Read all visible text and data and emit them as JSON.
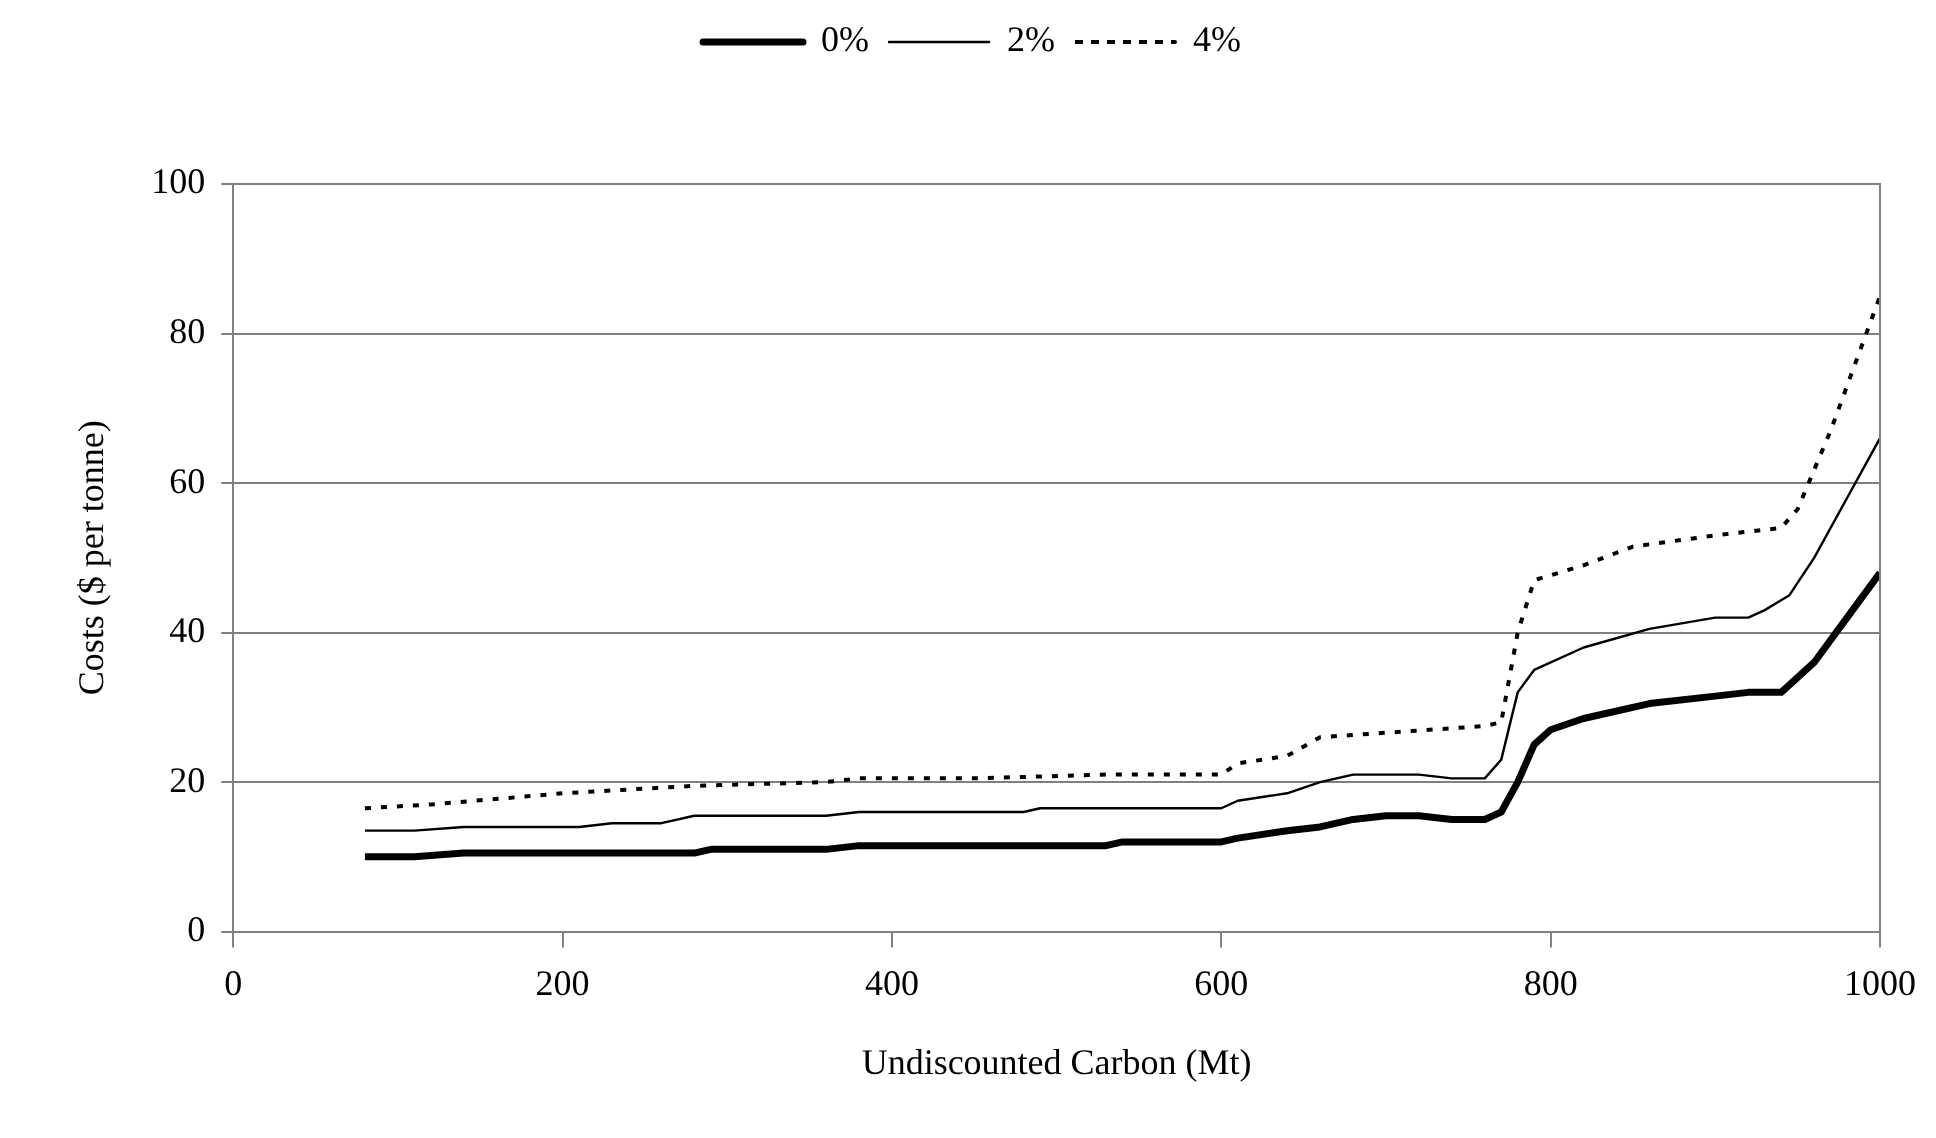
{
  "chart_data": {
    "type": "line",
    "xlabel": "Undiscounted Carbon (Mt)",
    "ylabel": "Costs ($ per tonne)",
    "xlim": [
      0,
      1000
    ],
    "xticks": [
      0,
      200,
      400,
      600,
      800,
      1000
    ],
    "ylim": [
      0,
      100
    ],
    "yticks": [
      0,
      20,
      40,
      60,
      80,
      100
    ],
    "grid": "y",
    "legend": "top",
    "marker": "none",
    "series": [
      {
        "name": "0%",
        "color": "#000000",
        "line_style": "solid",
        "x": [
          80,
          110,
          140,
          280,
          290,
          360,
          380,
          530,
          540,
          600,
          610,
          640,
          660,
          680,
          700,
          720,
          740,
          760,
          770,
          780,
          790,
          800,
          820,
          860,
          900,
          920,
          940,
          960,
          980,
          1000
        ],
        "values": [
          10,
          10,
          10.5,
          10.5,
          11,
          11,
          11.5,
          11.5,
          12,
          12,
          12.5,
          13.5,
          14,
          15,
          15.5,
          15.5,
          15,
          15,
          16,
          20,
          25,
          27,
          28.5,
          30.5,
          31.5,
          32,
          32,
          36,
          42,
          48
        ]
      },
      {
        "name": "2%",
        "color": "#000000",
        "line_style": "solid",
        "x": [
          80,
          110,
          140,
          210,
          230,
          260,
          280,
          360,
          380,
          480,
          490,
          600,
          610,
          640,
          660,
          680,
          720,
          740,
          760,
          770,
          780,
          790,
          820,
          860,
          900,
          920,
          930,
          945,
          960,
          980,
          1000
        ],
        "values": [
          13.5,
          13.5,
          14,
          14,
          14.5,
          14.5,
          15.5,
          15.5,
          16,
          16,
          16.5,
          16.5,
          17.5,
          18.5,
          20,
          21,
          21,
          20.5,
          20.5,
          23,
          32,
          35,
          38,
          40.5,
          42,
          42,
          43,
          45,
          50,
          58,
          66
        ]
      },
      {
        "name": "4%",
        "color": "#000000",
        "line_style": "dotted",
        "x": [
          80,
          120,
          200,
          280,
          360,
          380,
          450,
          530,
          600,
          610,
          640,
          660,
          760,
          770,
          780,
          790,
          820,
          850,
          900,
          940,
          950,
          970,
          990,
          1000
        ],
        "values": [
          16.5,
          17,
          18.5,
          19.5,
          20,
          20.5,
          20.5,
          21,
          21,
          22.5,
          23.5,
          26,
          27.5,
          28,
          40,
          47,
          49,
          51.5,
          53,
          54,
          56.5,
          67,
          79,
          85
        ]
      }
    ]
  }
}
